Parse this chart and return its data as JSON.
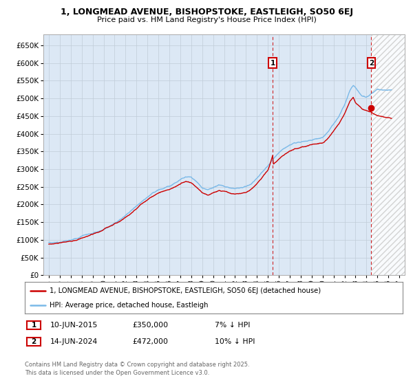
{
  "title1": "1, LONGMEAD AVENUE, BISHOPSTOKE, EASTLEIGH, SO50 6EJ",
  "title2": "Price paid vs. HM Land Registry's House Price Index (HPI)",
  "ylim": [
    0,
    680000
  ],
  "yticks": [
    0,
    50000,
    100000,
    150000,
    200000,
    250000,
    300000,
    350000,
    400000,
    450000,
    500000,
    550000,
    600000,
    650000
  ],
  "xlim_start": 1994.5,
  "xlim_end": 2027.5,
  "xticks": [
    1995,
    1996,
    1997,
    1998,
    1999,
    2000,
    2001,
    2002,
    2003,
    2004,
    2005,
    2006,
    2007,
    2008,
    2009,
    2010,
    2011,
    2012,
    2013,
    2014,
    2015,
    2016,
    2017,
    2018,
    2019,
    2020,
    2021,
    2022,
    2023,
    2024,
    2025,
    2026,
    2027
  ],
  "hpi_color": "#7ab9e8",
  "price_color": "#cc0000",
  "transaction1_date": 2015.44,
  "transaction1_price": 350000,
  "transaction2_date": 2024.45,
  "transaction2_price": 472000,
  "legend_line1": "1, LONGMEAD AVENUE, BISHOPSTOKE, EASTLEIGH, SO50 6EJ (detached house)",
  "legend_line2": "HPI: Average price, detached house, Eastleigh",
  "footnote": "Contains HM Land Registry data © Crown copyright and database right 2025.\nThis data is licensed under the Open Government Licence v3.0.",
  "table_row1": [
    "1",
    "10-JUN-2015",
    "£350,000",
    "7% ↓ HPI"
  ],
  "table_row2": [
    "2",
    "14-JUN-2024",
    "£472,000",
    "10% ↓ HPI"
  ],
  "background_color": "#ffffff",
  "chart_bg_color": "#dce8f5",
  "grid_color": "#c0ccd8",
  "hatch_color": "#cccccc"
}
